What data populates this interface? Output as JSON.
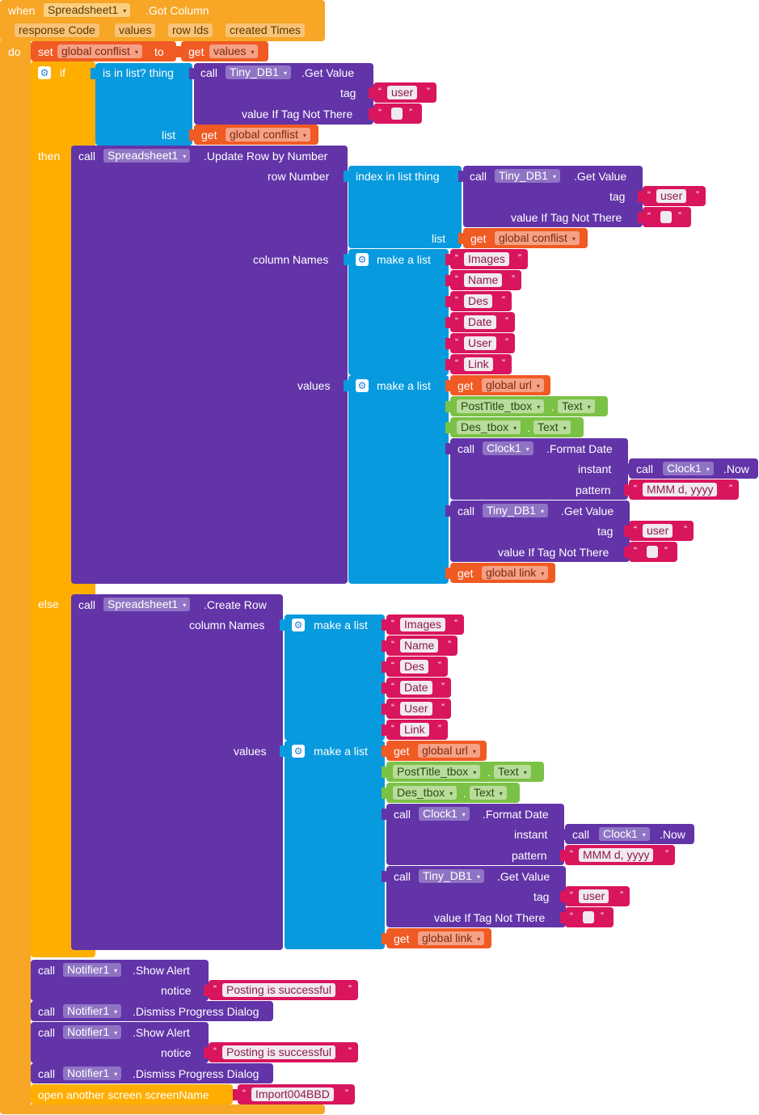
{
  "colors": {
    "event": "#f7a626",
    "event_dark": "#e5920d",
    "control": "#ffae00",
    "procedure": "#6234a8",
    "list": "#079ade",
    "variable": "#f05a23",
    "text": "#d9155d",
    "component": "#7bc146",
    "string_bg": "#f2e9ef",
    "field_bg": "#8f74c4"
  },
  "event": {
    "when": "when",
    "component": "Spreadsheet1",
    "event_name": ".Got Column",
    "params": [
      "response Code",
      "values",
      "row Ids",
      "created Times"
    ],
    "do": "do"
  },
  "set_block": {
    "set": "set",
    "var": "global conflist",
    "to": "to",
    "get": "get",
    "value": "values"
  },
  "if_block": {
    "if": "if",
    "then": "then",
    "else": "else",
    "cond": "is in list? thing",
    "list": "list",
    "tinydb_call": "call",
    "tinydb_comp": "Tiny_DB1",
    "tinydb_method": ".Get Value",
    "tag": "tag",
    "tag_value": "user",
    "not_there": "value If Tag Not There",
    "get": "get",
    "list_var": "global conflist"
  },
  "update_row": {
    "call": "call",
    "component": "Spreadsheet1",
    "method": ".Update Row by Number",
    "row_number": "row Number",
    "index_in_list": "index in list  thing",
    "list": "list",
    "column_names": "column Names",
    "values": "values"
  },
  "create_row": {
    "call": "call",
    "component": "Spreadsheet1",
    "method": ".Create Row",
    "column_names": "column Names",
    "values": "values"
  },
  "make_list": "make a list",
  "columns": [
    "Images",
    "Name",
    "Des",
    "Date",
    "User",
    "Link"
  ],
  "values_list": {
    "get": "get",
    "url_var": "global url",
    "title_comp": "PostTitle_tbox",
    "des_comp": "Des_tbox",
    "text_prop": "Text",
    "dot": ".",
    "clock_call": "call",
    "clock_comp": "Clock1",
    "format_date": ".Format Date",
    "instant": "instant",
    "now": ".Now",
    "pattern": "pattern",
    "pattern_value": "MMM d, yyyy",
    "link_var": "global link"
  },
  "notifier": {
    "call": "call",
    "component": "Notifier1",
    "show_alert": ".Show Alert",
    "notice": "notice",
    "message": "Posting is successful",
    "dismiss": ".Dismiss Progress Dialog"
  },
  "open_screen": {
    "label": "open another screen  screenName",
    "value": "Import004BBD"
  }
}
